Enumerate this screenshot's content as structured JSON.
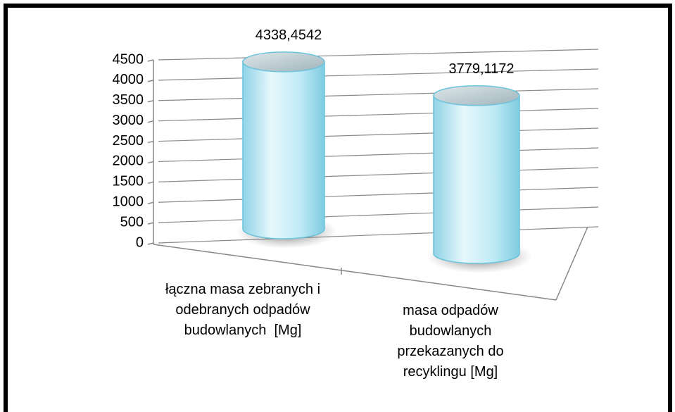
{
  "chart_data": {
    "type": "cylinder",
    "categories": [
      "łączna masa zebranych i odebranych odpadów budowlanych  [Mg]",
      "masa odpadów budowlanych przekazanych do recyklingu [Mg]"
    ],
    "values": [
      4338.4542,
      3779.1172
    ],
    "value_labels": [
      "4338,4542",
      "3779,1172"
    ],
    "color": "#bfeaf5",
    "ylim": [
      0,
      4500
    ],
    "yticks": [
      0,
      500,
      1000,
      1500,
      2000,
      2500,
      3000,
      3500,
      4000,
      4500
    ],
    "grid": true
  }
}
